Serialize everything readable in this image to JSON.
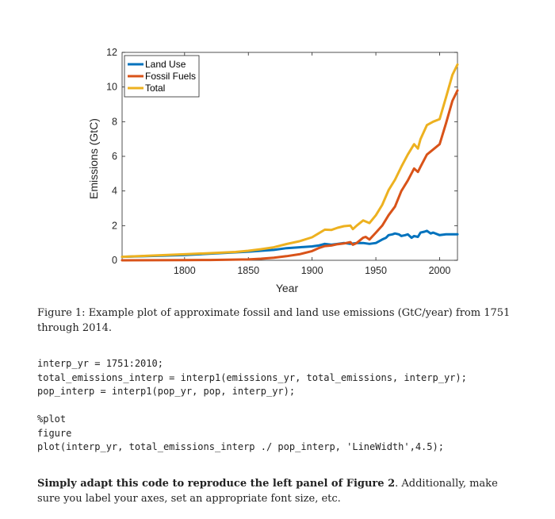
{
  "chart_data": {
    "type": "line",
    "title": "",
    "xlabel": "Year",
    "ylabel": "Emissions (GtC)",
    "xlim": [
      1751,
      2014
    ],
    "ylim": [
      0,
      12
    ],
    "xticks": [
      1800,
      1850,
      1900,
      1950,
      2000
    ],
    "yticks": [
      0,
      2,
      4,
      6,
      8,
      10,
      12
    ],
    "legend_position": "top-left",
    "series": [
      {
        "name": "Land Use",
        "color": "#0072BD",
        "x": [
          1751,
          1800,
          1850,
          1860,
          1870,
          1880,
          1890,
          1900,
          1905,
          1910,
          1915,
          1920,
          1925,
          1930,
          1935,
          1940,
          1945,
          1950,
          1955,
          1958,
          1960,
          1963,
          1965,
          1968,
          1970,
          1973,
          1975,
          1978,
          1980,
          1983,
          1985,
          1988,
          1990,
          1993,
          1995,
          2000,
          2005,
          2010,
          2014
        ],
        "values": [
          0.2,
          0.3,
          0.5,
          0.55,
          0.6,
          0.7,
          0.75,
          0.8,
          0.85,
          0.95,
          0.9,
          0.95,
          1.0,
          0.95,
          1.0,
          1.0,
          0.95,
          1.0,
          1.2,
          1.3,
          1.45,
          1.5,
          1.55,
          1.5,
          1.4,
          1.45,
          1.5,
          1.3,
          1.4,
          1.35,
          1.6,
          1.65,
          1.7,
          1.55,
          1.6,
          1.45,
          1.5,
          1.5,
          1.5
        ]
      },
      {
        "name": "Fossil Fuels",
        "color": "#D95319",
        "x": [
          1751,
          1800,
          1820,
          1840,
          1850,
          1860,
          1870,
          1880,
          1890,
          1900,
          1905,
          1910,
          1915,
          1920,
          1925,
          1930,
          1932,
          1935,
          1940,
          1942,
          1945,
          1950,
          1955,
          1960,
          1965,
          1970,
          1975,
          1980,
          1983,
          1985,
          1990,
          1995,
          2000,
          2005,
          2010,
          2014
        ],
        "values": [
          0.0,
          0.01,
          0.02,
          0.04,
          0.05,
          0.09,
          0.15,
          0.24,
          0.35,
          0.53,
          0.7,
          0.82,
          0.85,
          0.93,
          0.97,
          1.05,
          0.9,
          1.0,
          1.3,
          1.35,
          1.2,
          1.6,
          2.0,
          2.6,
          3.1,
          4.0,
          4.6,
          5.3,
          5.1,
          5.4,
          6.1,
          6.4,
          6.7,
          7.9,
          9.2,
          9.8
        ]
      },
      {
        "name": "Total",
        "color": "#EDB120",
        "x": [
          1751,
          1800,
          1840,
          1850,
          1860,
          1870,
          1880,
          1890,
          1900,
          1905,
          1910,
          1915,
          1920,
          1925,
          1930,
          1932,
          1935,
          1940,
          1945,
          1950,
          1955,
          1960,
          1965,
          1970,
          1975,
          1980,
          1983,
          1985,
          1990,
          1995,
          2000,
          2005,
          2010,
          2014
        ],
        "values": [
          0.2,
          0.35,
          0.48,
          0.55,
          0.64,
          0.75,
          0.94,
          1.1,
          1.33,
          1.55,
          1.77,
          1.75,
          1.88,
          1.97,
          2.0,
          1.8,
          2.0,
          2.3,
          2.15,
          2.6,
          3.2,
          4.05,
          4.65,
          5.4,
          6.1,
          6.7,
          6.45,
          7.0,
          7.8,
          8.0,
          8.15,
          9.4,
          10.7,
          11.3
        ]
      }
    ]
  },
  "caption": {
    "text": "Figure 1: Example plot of approximate fossil and land use emissions (GtC/year) from 1751 through 2014."
  },
  "code": {
    "block1": "interp_yr = 1751:2010;\ntotal_emissions_interp = interp1(emissions_yr, total_emissions, interp_yr);\npop_interp = interp1(pop_yr, pop, interp_yr);",
    "block2": "%plot\nfigure\nplot(interp_yr, total_emissions_interp ./ pop_interp, 'LineWidth',4.5);"
  },
  "instructions": {
    "bold": "Simply adapt this code to reproduce the left panel of Figure 2",
    "rest": ". Additionally, make sure you label your axes, set an appropriate font size, etc."
  }
}
